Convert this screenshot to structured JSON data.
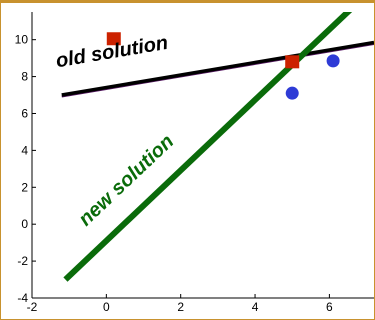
{
  "chart_data": {
    "type": "scatter",
    "xlim": [
      -2,
      7.2
    ],
    "ylim": [
      -4,
      11.5
    ],
    "x_ticks": [
      -2,
      0,
      2,
      4,
      6
    ],
    "y_ticks": [
      -4,
      -2,
      0,
      2,
      4,
      6,
      8,
      10
    ],
    "grid": false,
    "series": [
      {
        "marker": "square",
        "color": "#cc2200",
        "points": [
          [
            0.2,
            10.05
          ],
          [
            5.0,
            8.8
          ]
        ]
      },
      {
        "marker": "circle",
        "color": "#2e3bd6",
        "points": [
          [
            5.0,
            7.1
          ],
          [
            6.1,
            8.85
          ]
        ]
      }
    ],
    "lines": [
      {
        "label": "old solution",
        "color": "#000000",
        "accent": "#5a1a66",
        "from": [
          -1.2,
          7.0
        ],
        "to": [
          7.2,
          9.85
        ]
      },
      {
        "label": "new solution",
        "color": "#0a6b0a",
        "from": [
          -1.1,
          -3.0
        ],
        "to": [
          6.6,
          11.7
        ]
      }
    ]
  },
  "theme": {
    "frame_color": "#c8922e",
    "axis_color": "#000000"
  }
}
